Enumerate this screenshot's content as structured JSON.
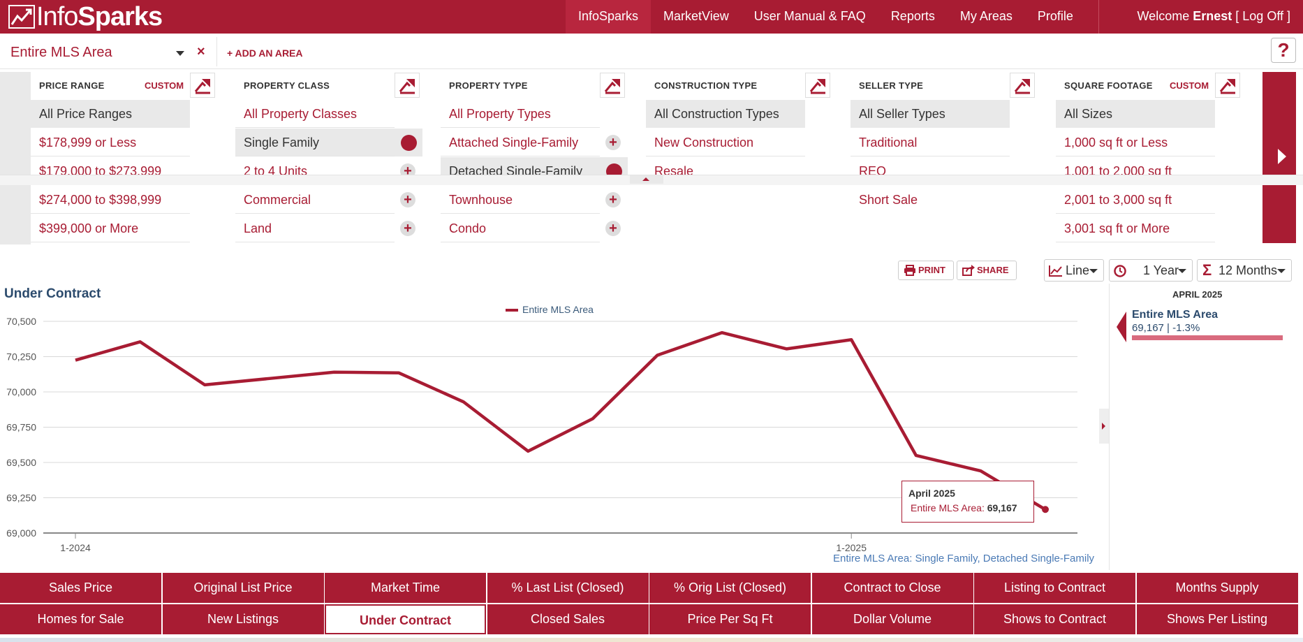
{
  "app": {
    "brand_part1": "Info",
    "brand_part2": "Sparks"
  },
  "nav": [
    {
      "label": "InfoSparks"
    },
    {
      "label": "MarketView"
    },
    {
      "label": "User Manual & FAQ"
    },
    {
      "label": "Reports"
    },
    {
      "label": "My Areas"
    },
    {
      "label": "Profile"
    }
  ],
  "user": {
    "welcome": "Welcome",
    "name": "Ernest",
    "logoff": "[ Log Off ]"
  },
  "area": {
    "selected": "Entire MLS Area",
    "remove": "×",
    "add_label": "+ ADD AN AREA",
    "help": "?"
  },
  "filters": [
    {
      "title": "PRICE RANGE",
      "custom": "CUSTOM",
      "options": [
        "All Price Ranges",
        "$178,999 or Less",
        "$179,000 to $273,999",
        "$274,000 to $398,999",
        "$399,000 or More"
      ]
    },
    {
      "title": "PROPERTY CLASS",
      "custom": "",
      "options": [
        "All Property Classes",
        "Single Family",
        "2 to 4 Units",
        "Commercial",
        "Land"
      ]
    },
    {
      "title": "PROPERTY TYPE",
      "custom": "",
      "options": [
        "All Property Types",
        "Attached Single-Family",
        "Detached Single-Family",
        "Townhouse",
        "Condo"
      ]
    },
    {
      "title": "CONSTRUCTION TYPE",
      "custom": "",
      "options": [
        "All Construction Types",
        "New Construction",
        "Resale"
      ]
    },
    {
      "title": "SELLER TYPE",
      "custom": "",
      "options": [
        "All Seller Types",
        "Traditional",
        "REO",
        "Short Sale"
      ]
    },
    {
      "title": "SQUARE FOOTAGE",
      "custom": "CUSTOM",
      "options": [
        "All Sizes",
        "1,000 sq ft or Less",
        "1,001 to 2,000 sq ft",
        "2,001 to 3,000 sq ft",
        "3,001 sq ft or More"
      ]
    }
  ],
  "toolbar": {
    "print": "PRINT",
    "share": "SHARE",
    "chart_type": "Line",
    "period": "1 Year",
    "rolling": "12 Months"
  },
  "chart": {
    "title": "Under Contract",
    "legend": "Entire MLS Area",
    "subtitle": "Entire MLS Area: Single Family, Detached Single-Family",
    "yticks": [
      "70,500",
      "70,250",
      "70,000",
      "69,750",
      "69,500",
      "69,250",
      "69,000"
    ],
    "xticks": [
      "1-2024",
      "1-2025"
    ],
    "tooltip": {
      "title": "April 2025",
      "series": "Entire MLS Area:",
      "value": "69,167"
    }
  },
  "chart_data": {
    "type": "line",
    "title": "Under Contract",
    "xlabel": "",
    "ylabel": "",
    "x": [
      "2024-01",
      "2024-02",
      "2024-03",
      "2024-04",
      "2024-05",
      "2024-06",
      "2024-07",
      "2024-08",
      "2024-09",
      "2024-10",
      "2024-11",
      "2024-12",
      "2025-01",
      "2025-02",
      "2025-03",
      "2025-04"
    ],
    "series": [
      {
        "name": "Entire MLS Area",
        "values": [
          70225,
          70355,
          70050,
          70095,
          70140,
          70135,
          69930,
          69580,
          69810,
          70260,
          70420,
          70305,
          70370,
          69550,
          69440,
          69167
        ]
      }
    ],
    "ylim": [
      69000,
      70500
    ],
    "grid": true,
    "legend": "top-center",
    "color": "#a81c33"
  },
  "side": {
    "month": "APRIL 2025",
    "name": "Entire MLS Area",
    "value": "69,167 | -1.3%"
  },
  "metrics": [
    "Sales Price",
    "Original List Price",
    "Market Time",
    "% Last List (Closed)",
    "% Orig List (Closed)",
    "Contract to Close",
    "Listing to Contract",
    "Months Supply",
    "Homes for Sale",
    "New Listings",
    "Under Contract",
    "Closed Sales",
    "Price Per Sq Ft",
    "Dollar Volume",
    "Shows to Contract",
    "Shows Per Listing"
  ],
  "active_metric": "Under Contract",
  "colors": {
    "brand": "#a81c33",
    "title_blue": "#2c4b6d",
    "link_blue": "#4a7ab5"
  }
}
